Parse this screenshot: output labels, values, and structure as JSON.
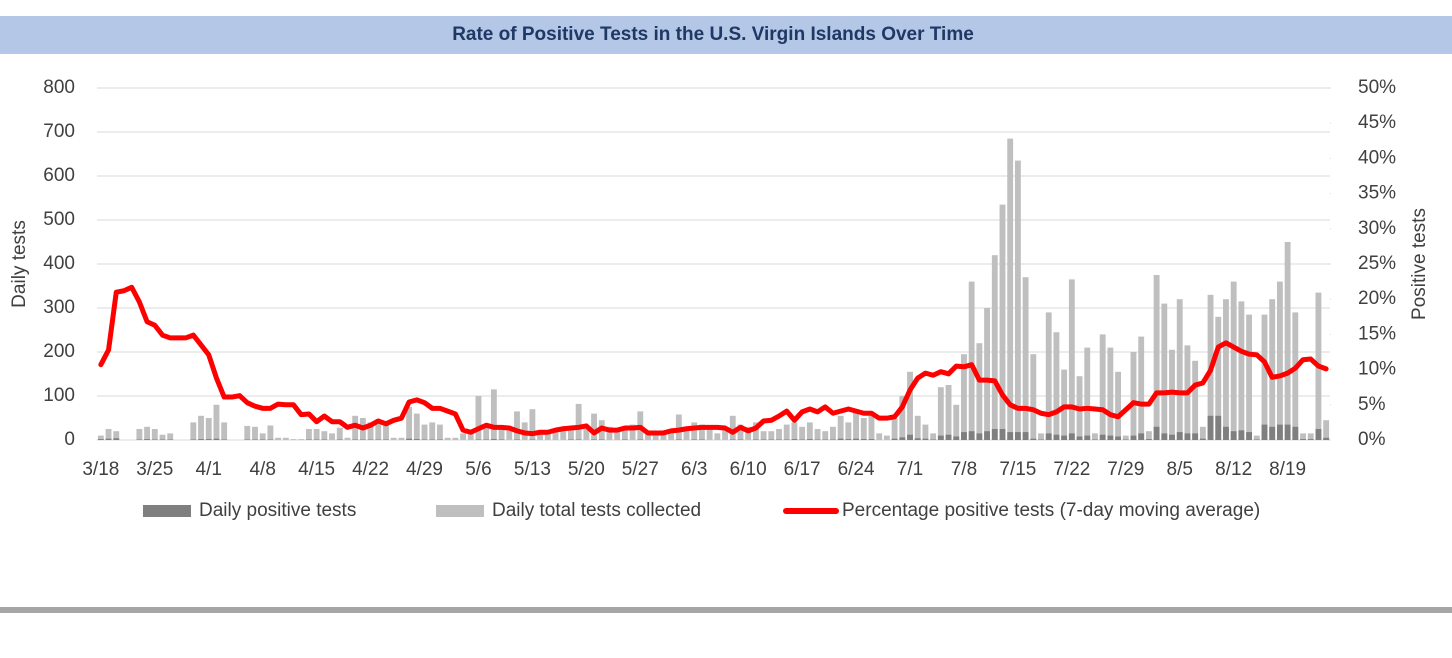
{
  "chart_data": {
    "type": "bar",
    "title": "Rate of Positive Tests in the U.S. Virgin Islands Over Time",
    "ylabel": "Daily tests",
    "y2label": "Positive tests",
    "categories": [
      "3/18",
      null,
      null,
      null,
      null,
      null,
      null,
      "3/25",
      null,
      null,
      null,
      null,
      null,
      null,
      "4/1",
      null,
      null,
      null,
      null,
      null,
      null,
      "4/8",
      null,
      null,
      null,
      null,
      null,
      null,
      "4/15",
      null,
      null,
      null,
      null,
      null,
      null,
      "4/22",
      null,
      null,
      null,
      null,
      null,
      null,
      "4/29",
      null,
      null,
      null,
      null,
      null,
      null,
      "5/6",
      null,
      null,
      null,
      null,
      null,
      null,
      "5/13",
      null,
      null,
      null,
      null,
      null,
      null,
      "5/20",
      null,
      null,
      null,
      null,
      null,
      null,
      "5/27",
      null,
      null,
      null,
      null,
      null,
      null,
      "6/3",
      null,
      null,
      null,
      null,
      null,
      null,
      "6/10",
      null,
      null,
      null,
      null,
      null,
      null,
      "6/17",
      null,
      null,
      null,
      null,
      null,
      null,
      "6/24",
      null,
      null,
      null,
      null,
      null,
      null,
      "7/1",
      null,
      null,
      null,
      null,
      null,
      null,
      "7/8",
      null,
      null,
      null,
      null,
      null,
      null,
      "7/15",
      null,
      null,
      null,
      null,
      null,
      null,
      "7/22",
      null,
      null,
      null,
      null,
      null,
      null,
      "7/29",
      null,
      null,
      null,
      null,
      null,
      null,
      "8/5",
      null,
      null,
      null,
      null,
      null,
      null,
      "8/12",
      null,
      null,
      null,
      null,
      null,
      null,
      "8/19",
      null,
      null,
      null,
      null,
      null
    ],
    "series": [
      {
        "name": "Daily positive tests",
        "color": "#7f7f7f",
        "kind": "bar",
        "values": [
          2,
          3,
          4,
          0,
          0,
          1,
          2,
          1,
          1,
          1,
          0,
          0,
          1,
          2,
          2,
          3,
          1,
          0,
          0,
          1,
          1,
          1,
          1,
          0,
          0,
          0,
          0,
          1,
          1,
          1,
          0,
          1,
          0,
          1,
          1,
          1,
          1,
          1,
          0,
          0,
          3,
          2,
          1,
          1,
          1,
          0,
          0,
          0,
          0,
          1,
          1,
          2,
          1,
          0,
          1,
          0,
          1,
          0,
          0,
          0,
          0,
          1,
          1,
          0,
          1,
          1,
          0,
          0,
          1,
          0,
          1,
          0,
          0,
          0,
          0,
          1,
          0,
          1,
          1,
          0,
          0,
          0,
          1,
          1,
          0,
          1,
          1,
          1,
          1,
          1,
          2,
          1,
          2,
          1,
          1,
          1,
          3,
          2,
          3,
          2,
          2,
          0,
          0,
          3,
          6,
          12,
          4,
          3,
          1,
          10,
          12,
          8,
          18,
          20,
          15,
          20,
          25,
          25,
          18,
          18,
          18,
          3,
          1,
          15,
          12,
          10,
          15,
          8,
          10,
          1,
          12,
          10,
          8,
          1,
          10,
          15,
          2,
          30,
          15,
          12,
          18,
          15,
          15,
          3,
          55,
          55,
          30,
          20,
          22,
          18,
          1,
          35,
          30,
          35,
          35,
          30,
          2,
          2,
          25,
          5
        ]
      },
      {
        "name": "Daily total tests collected",
        "color": "#bfbfbf",
        "kind": "bar",
        "values": [
          10,
          25,
          20,
          0,
          0,
          25,
          30,
          25,
          12,
          15,
          0,
          0,
          40,
          55,
          50,
          80,
          40,
          0,
          0,
          32,
          30,
          15,
          33,
          5,
          5,
          2,
          2,
          25,
          25,
          20,
          15,
          28,
          5,
          55,
          50,
          40,
          45,
          35,
          5,
          5,
          75,
          60,
          35,
          40,
          35,
          5,
          5,
          15,
          20,
          100,
          30,
          115,
          30,
          25,
          65,
          40,
          70,
          15,
          20,
          25,
          20,
          30,
          82,
          25,
          60,
          45,
          30,
          25,
          30,
          35,
          65,
          20,
          15,
          15,
          25,
          58,
          20,
          40,
          35,
          25,
          15,
          30,
          55,
          35,
          30,
          40,
          20,
          20,
          25,
          35,
          40,
          30,
          40,
          25,
          20,
          30,
          55,
          40,
          70,
          50,
          55,
          15,
          10,
          50,
          100,
          155,
          55,
          35,
          15,
          120,
          125,
          80,
          195,
          360,
          220,
          300,
          420,
          535,
          685,
          635,
          370,
          195,
          15,
          290,
          245,
          160,
          365,
          145,
          210,
          15,
          240,
          210,
          155,
          10,
          200,
          235,
          20,
          375,
          310,
          205,
          320,
          215,
          180,
          30,
          330,
          280,
          320,
          360,
          315,
          285,
          10,
          285,
          320,
          360,
          450,
          290,
          15,
          15,
          335,
          45
        ]
      },
      {
        "name": "Percentage positive tests (7-day moving average)",
        "color": "#ff0000",
        "kind": "line",
        "axis": "y2",
        "values": [
          10.7,
          12.8,
          21,
          21.2,
          21.7,
          19.6,
          16.8,
          16.3,
          14.9,
          14.5,
          14.5,
          14.5,
          14.9,
          13.5,
          12.1,
          8.8,
          6.1,
          6.1,
          6.3,
          5.3,
          4.8,
          4.5,
          4.5,
          5.1,
          5.0,
          5.0,
          3.6,
          3.7,
          2.6,
          3.4,
          2.6,
          2.6,
          1.8,
          2.1,
          1.7,
          2.1,
          2.7,
          2.3,
          2.8,
          3.1,
          5.4,
          5.7,
          5.3,
          4.5,
          4.5,
          4.1,
          3.7,
          1.4,
          1.1,
          1.6,
          2.1,
          1.8,
          1.8,
          1.7,
          1.3,
          1.0,
          0.9,
          1.1,
          1.1,
          1.4,
          1.6,
          1.7,
          1.8,
          2.0,
          1.0,
          1.7,
          1.4,
          1.4,
          1.7,
          1.7,
          1.8,
          1.0,
          1.0,
          1.0,
          1.3,
          1.4,
          1.6,
          1.7,
          1.8,
          1.8,
          1.8,
          1.7,
          1.1,
          1.8,
          1.3,
          1.7,
          2.7,
          2.8,
          3.4,
          4.1,
          2.8,
          4.0,
          4.4,
          4.0,
          4.7,
          3.8,
          4.1,
          4.4,
          4.1,
          3.8,
          3.8,
          3.1,
          3.1,
          3.3,
          4.7,
          7.1,
          8.8,
          9.5,
          9.2,
          9.7,
          9.4,
          10.5,
          10.4,
          10.7,
          8.5,
          8.5,
          8.4,
          6.4,
          5.0,
          4.5,
          4.5,
          4.3,
          3.8,
          3.6,
          4.0,
          4.7,
          4.7,
          4.4,
          4.5,
          4.4,
          4.3,
          3.6,
          3.3,
          4.3,
          5.3,
          5.1,
          5.1,
          6.7,
          6.7,
          6.8,
          6.7,
          6.7,
          7.8,
          8.1,
          9.9,
          13.2,
          13.8,
          13.2,
          12.6,
          12.2,
          12.1,
          11.1,
          8.9,
          9.1,
          9.5,
          10.2,
          11.4,
          11.5,
          10.5,
          10.1
        ]
      }
    ],
    "ylim": [
      0,
      800
    ],
    "yticks": [
      0,
      100,
      200,
      300,
      400,
      500,
      600,
      700,
      800
    ],
    "y2lim": [
      0,
      50
    ],
    "y2ticks": [
      {
        "value": 0,
        "label": "0%"
      },
      {
        "value": 5,
        "label": "5%"
      },
      {
        "value": 10,
        "label": "10%"
      },
      {
        "value": 15,
        "label": "15%"
      },
      {
        "value": 20,
        "label": "20%"
      },
      {
        "value": 25,
        "label": "25%"
      },
      {
        "value": 30,
        "label": "30%"
      },
      {
        "value": 35,
        "label": "35%"
      },
      {
        "value": 40,
        "label": "40%"
      },
      {
        "value": 45,
        "label": "45%"
      },
      {
        "value": 50,
        "label": "50%"
      }
    ],
    "grid": true,
    "legend": "bottom"
  }
}
